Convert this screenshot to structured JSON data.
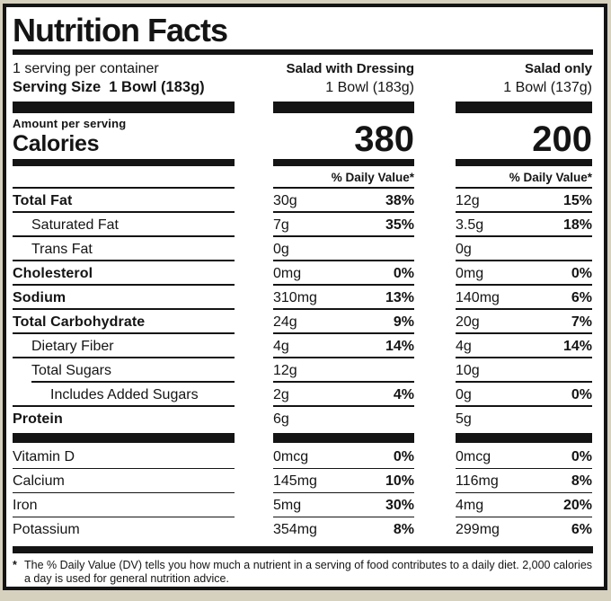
{
  "label": {
    "title": "Nutrition Facts",
    "serving_per_container": "1 serving per container",
    "serving_size": "Serving Size  1 Bowl (183g)",
    "amount_per_serving": "Amount per serving",
    "calories_label": "Calories",
    "daily_value_header": "% Daily Value*",
    "footnote_marker": "*",
    "footnote": "The % Daily Value (DV) tells you how much a nutrient in a serving of food contributes to a daily diet. 2,000 calories a day is used for general nutrition advice."
  },
  "columns": [
    {
      "name": "Salad with Dressing",
      "size": "1 Bowl (183g)",
      "calories": "380"
    },
    {
      "name": "Salad only",
      "size": "1 Bowl (137g)",
      "calories": "200"
    }
  ],
  "rows": [
    {
      "name": "Total Fat",
      "bold": true,
      "indent": 0,
      "sep": "normal",
      "col1": {
        "amount": "30g",
        "dv": "38%"
      },
      "col2": {
        "amount": "12g",
        "dv": "15%"
      }
    },
    {
      "name": "Saturated Fat",
      "bold": false,
      "indent": 1,
      "sep": "normal",
      "col1": {
        "amount": "7g",
        "dv": "35%"
      },
      "col2": {
        "amount": "3.5g",
        "dv": "18%"
      }
    },
    {
      "name": "Trans Fat",
      "bold": false,
      "indent": 1,
      "sep": "normal",
      "col1": {
        "amount": "0g",
        "dv": ""
      },
      "col2": {
        "amount": "0g",
        "dv": ""
      }
    },
    {
      "name": "Cholesterol",
      "bold": true,
      "indent": 0,
      "sep": "normal",
      "col1": {
        "amount": "0mg",
        "dv": "0%"
      },
      "col2": {
        "amount": "0mg",
        "dv": "0%"
      }
    },
    {
      "name": "Sodium",
      "bold": true,
      "indent": 0,
      "sep": "normal",
      "col1": {
        "amount": "310mg",
        "dv": "13%"
      },
      "col2": {
        "amount": "140mg",
        "dv": "6%"
      }
    },
    {
      "name": "Total Carbohydrate",
      "bold": true,
      "indent": 0,
      "sep": "normal",
      "col1": {
        "amount": "24g",
        "dv": "9%"
      },
      "col2": {
        "amount": "20g",
        "dv": "7%"
      }
    },
    {
      "name": "Dietary Fiber",
      "bold": false,
      "indent": 1,
      "sep": "normal",
      "col1": {
        "amount": "4g",
        "dv": "14%"
      },
      "col2": {
        "amount": "4g",
        "dv": "14%"
      }
    },
    {
      "name": "Total Sugars",
      "bold": false,
      "indent": 1,
      "sep": "indent",
      "col1": {
        "amount": "12g",
        "dv": ""
      },
      "col2": {
        "amount": "10g",
        "dv": ""
      }
    },
    {
      "name": "Includes Added Sugars",
      "bold": false,
      "indent": 2,
      "sep": "normal",
      "col1": {
        "amount": "2g",
        "dv": "4%"
      },
      "col2": {
        "amount": "0g",
        "dv": "0%"
      }
    },
    {
      "name": "Protein",
      "bold": true,
      "indent": 0,
      "sep": "none",
      "col1": {
        "amount": "6g",
        "dv": ""
      },
      "col2": {
        "amount": "5g",
        "dv": ""
      }
    }
  ],
  "vitamins": [
    {
      "name": "Vitamin D",
      "bold": false,
      "indent": 0,
      "sep": "normal",
      "col1": {
        "amount": "0mcg",
        "dv": "0%"
      },
      "col2": {
        "amount": "0mcg",
        "dv": "0%"
      }
    },
    {
      "name": "Calcium",
      "bold": false,
      "indent": 0,
      "sep": "normal",
      "col1": {
        "amount": "145mg",
        "dv": "10%"
      },
      "col2": {
        "amount": "116mg",
        "dv": "8%"
      }
    },
    {
      "name": "Iron",
      "bold": false,
      "indent": 0,
      "sep": "normal",
      "col1": {
        "amount": "5mg",
        "dv": "30%"
      },
      "col2": {
        "amount": "4mg",
        "dv": "20%"
      }
    },
    {
      "name": "Potassium",
      "bold": false,
      "indent": 0,
      "sep": "none",
      "col1": {
        "amount": "354mg",
        "dv": "8%"
      },
      "col2": {
        "amount": "299mg",
        "dv": "6%"
      }
    }
  ],
  "colors": {
    "ink": "#141414",
    "paper": "#ffffff",
    "background": "#d6d0bf"
  }
}
